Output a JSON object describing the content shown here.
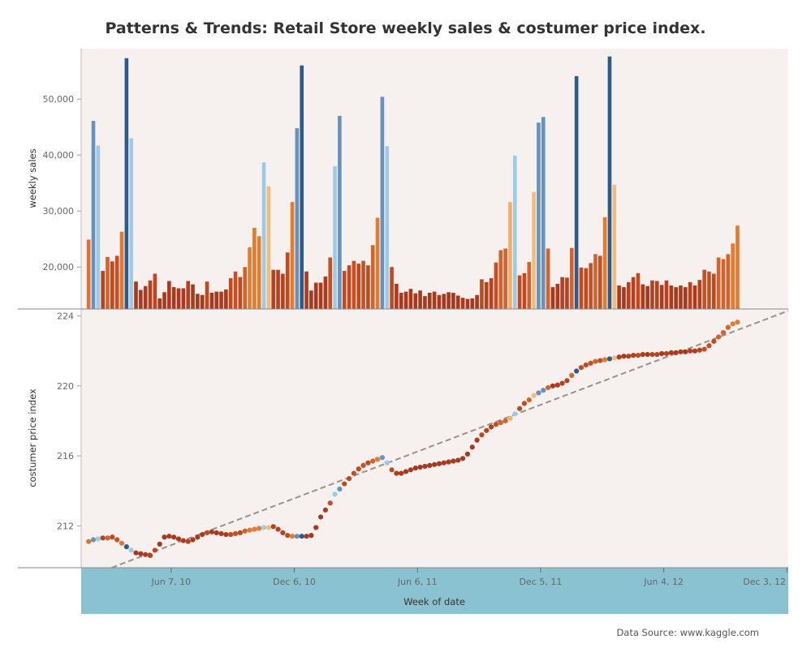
{
  "title": "Patterns & Trends: Retail Store weekly sales & costumer price index.",
  "source": "Data Source: www.kaggle.com",
  "colors": {
    "panel_bg": "#f6f1ee",
    "xaxis_band": "#8ac2d2",
    "trend_line": "#9c9089",
    "palette_orange": [
      "#a9381c",
      "#c04a1e",
      "#d4622c",
      "#e57b2d",
      "#f0bd7f"
    ],
    "palette_blue": [
      "#9dcbe3",
      "#6592be",
      "#2f5b88",
      "#b6c3cb"
    ]
  },
  "chart_data": [
    {
      "type": "bar",
      "ylabel": "weekly sales",
      "y_ticks": [
        "20,000",
        "30,000",
        "40,000",
        "50,000"
      ],
      "y_tick_values": [
        20000,
        30000,
        40000,
        50000
      ],
      "ylim": [
        12500,
        59000
      ],
      "x_start": "2010-02-05",
      "x_interval_days": 7,
      "values": [
        24900,
        46100,
        41700,
        19300,
        21800,
        21000,
        22000,
        26300,
        57300,
        43000,
        17400,
        15900,
        16600,
        17600,
        18800,
        14400,
        15500,
        17500,
        16400,
        16200,
        16200,
        17500,
        16900,
        15200,
        15000,
        17400,
        15400,
        15600,
        15600,
        16000,
        18000,
        19200,
        18200,
        20000,
        23500,
        27000,
        25500,
        38700,
        34400,
        19500,
        19500,
        18800,
        22600,
        31600,
        44800,
        56000,
        19200,
        15800,
        17200,
        17200,
        18300,
        21700,
        38000,
        47000,
        19300,
        20300,
        21100,
        20600,
        21100,
        20300,
        23900,
        28800,
        50400,
        41600,
        20000,
        17000,
        15400,
        15600,
        16100,
        15300,
        15800,
        14800,
        15400,
        15600,
        15000,
        15200,
        15500,
        15400,
        14900,
        14500,
        14300,
        14400,
        15000,
        17800,
        17300,
        18000,
        20800,
        23000,
        23300,
        31600,
        39900,
        18500,
        18900,
        20900,
        33400,
        45800,
        46800,
        23300,
        16400,
        17000,
        18200,
        18100,
        23400,
        54100,
        19900,
        19800,
        20700,
        22300,
        22000,
        28900,
        57600,
        34700,
        16700,
        16400,
        17300,
        18200,
        18900,
        16900,
        16600,
        17600,
        17500,
        16800,
        17600,
        16700,
        16400,
        16700,
        16400,
        17300,
        16700,
        17700,
        19500,
        19200,
        18800,
        21700,
        21400,
        22300,
        24200,
        27400
      ],
      "bar_colors": [
        "#e07130",
        "#6592be",
        "#9dcbe3",
        "#b74420",
        "#d4622c",
        "#c04a1e",
        "#c94f22",
        "#e17730",
        "#2f5b88",
        "#9dcbe3",
        "#a9381c",
        "#a9381c",
        "#b0391c",
        "#b5411f",
        "#c0461f",
        "#a9381c",
        "#a9381c",
        "#b0391c",
        "#a9381c",
        "#a9381c",
        "#b0391c",
        "#b5411f",
        "#b0391c",
        "#a9381c",
        "#a9381c",
        "#c04a1e",
        "#a9381c",
        "#a9381c",
        "#b0391c",
        "#b0391c",
        "#c04a1e",
        "#c94f22",
        "#c04a1e",
        "#d4622c",
        "#e57b2d",
        "#e57b2d",
        "#e57b2d",
        "#9dcbe3",
        "#f0bd7f",
        "#b5411f",
        "#b5411f",
        "#b5411f",
        "#c04a1e",
        "#e57b2d",
        "#6592be",
        "#2f5b88",
        "#b0391c",
        "#a9381c",
        "#a9381c",
        "#a9381c",
        "#b0391c",
        "#c94f22",
        "#9dcbe3",
        "#6592be",
        "#c04a1e",
        "#c04a1e",
        "#c94f22",
        "#c04a1e",
        "#c94f22",
        "#c04a1e",
        "#d4622c",
        "#e57b2d",
        "#6592be",
        "#9dcbe3",
        "#c04a1e",
        "#b0391c",
        "#a9381c",
        "#a9381c",
        "#a9381c",
        "#a9381c",
        "#a9381c",
        "#a9381c",
        "#a9381c",
        "#a9381c",
        "#a9381c",
        "#a9381c",
        "#a9381c",
        "#a9381c",
        "#a9381c",
        "#a9381c",
        "#a9381c",
        "#a9381c",
        "#a9381c",
        "#c04a1e",
        "#b5411f",
        "#b5411f",
        "#c94f22",
        "#d4622c",
        "#d4622c",
        "#f0b06a",
        "#9dcbe3",
        "#c04a1e",
        "#c04a1e",
        "#d4622c",
        "#f0bd7f",
        "#6592be",
        "#6592be",
        "#d4622c",
        "#a9381c",
        "#b0391c",
        "#b5411f",
        "#b5411f",
        "#d4622c",
        "#2f5b88",
        "#c04a1e",
        "#c04a1e",
        "#c94f22",
        "#d4622c",
        "#c94f22",
        "#e57b2d",
        "#2f5b88",
        "#f0bd7f",
        "#b0391c",
        "#a9381c",
        "#b5411f",
        "#b5411f",
        "#c04a1e",
        "#b0391c",
        "#a9381c",
        "#b5411f",
        "#b5411f",
        "#b0391c",
        "#b5411f",
        "#b0391c",
        "#a9381c",
        "#b0391c",
        "#a9381c",
        "#b5411f",
        "#b0391c",
        "#b5411f",
        "#c94f22",
        "#c94f22",
        "#c04a1e",
        "#d4622c",
        "#d4622c",
        "#d4622c",
        "#e57b2d",
        "#e57b2d"
      ]
    },
    {
      "type": "scatter",
      "ylabel": "costumer price index",
      "xlabel": "Week of date",
      "y_ticks": [
        "212",
        "216",
        "220",
        "224"
      ],
      "y_tick_values": [
        212,
        216,
        220,
        224
      ],
      "ylim": [
        209.6,
        224.4
      ],
      "x_ticks": [
        "Jun 7, 10",
        "Dec 6, 10",
        "Jun 6, 11",
        "Dec 5, 11",
        "Jun 4, 12",
        "Dec 3, 12"
      ],
      "x_tick_dates": [
        "2010-06-07",
        "2010-12-06",
        "2011-06-06",
        "2011-12-05",
        "2012-06-04",
        "2012-12-03"
      ],
      "x_range": [
        "2010-01-25",
        "2012-12-05"
      ],
      "x_start": "2010-02-05",
      "x_interval_days": 7,
      "trend": {
        "x": [
          "2010-03-11",
          "2012-12-05"
        ],
        "y": [
          209.6,
          224.3
        ]
      },
      "values": [
        211.1,
        211.2,
        211.25,
        211.3,
        211.3,
        211.35,
        211.2,
        211.0,
        210.8,
        210.6,
        210.45,
        210.4,
        210.35,
        210.3,
        210.6,
        210.95,
        211.35,
        211.4,
        211.35,
        211.25,
        211.15,
        211.1,
        211.2,
        211.35,
        211.5,
        211.6,
        211.65,
        211.6,
        211.55,
        211.5,
        211.5,
        211.55,
        211.6,
        211.7,
        211.75,
        211.8,
        211.85,
        211.9,
        211.9,
        211.95,
        211.8,
        211.6,
        211.45,
        211.4,
        211.4,
        211.4,
        211.4,
        211.45,
        211.9,
        212.5,
        212.9,
        213.3,
        213.8,
        214.1,
        214.4,
        214.7,
        215.0,
        215.25,
        215.45,
        215.6,
        215.7,
        215.8,
        215.9,
        215.6,
        215.2,
        215.0,
        215.0,
        215.1,
        215.2,
        215.3,
        215.35,
        215.4,
        215.45,
        215.5,
        215.55,
        215.6,
        215.65,
        215.7,
        215.75,
        215.85,
        216.1,
        216.5,
        216.9,
        217.2,
        217.45,
        217.65,
        217.8,
        217.9,
        218.0,
        218.15,
        218.4,
        218.7,
        219.0,
        219.2,
        219.45,
        219.6,
        219.75,
        219.9,
        220.0,
        220.05,
        220.15,
        220.3,
        220.6,
        220.85,
        221.05,
        221.2,
        221.3,
        221.4,
        221.45,
        221.5,
        221.55,
        221.6,
        221.65,
        221.7,
        221.7,
        221.75,
        221.75,
        221.8,
        221.8,
        221.8,
        221.8,
        221.85,
        221.85,
        221.9,
        221.9,
        221.95,
        221.95,
        222.0,
        222.0,
        222.05,
        222.1,
        222.3,
        222.55,
        222.8,
        223.05,
        223.35,
        223.55,
        223.65
      ],
      "point_colors": [
        "#e07130",
        "#6592be",
        "#9dcbe3",
        "#b74420",
        "#d4622c",
        "#c04a1e",
        "#c94f22",
        "#e17730",
        "#2f5b88",
        "#9dcbe3",
        "#a9381c",
        "#a9381c",
        "#b0391c",
        "#b5411f",
        "#c0461f",
        "#a9381c",
        "#a9381c",
        "#b0391c",
        "#a9381c",
        "#a9381c",
        "#b0391c",
        "#b5411f",
        "#b0391c",
        "#a9381c",
        "#a9381c",
        "#c04a1e",
        "#a9381c",
        "#a9381c",
        "#b0391c",
        "#b0391c",
        "#c04a1e",
        "#c94f22",
        "#c04a1e",
        "#d4622c",
        "#e57b2d",
        "#e57b2d",
        "#e57b2d",
        "#9dcbe3",
        "#f0bd7f",
        "#b5411f",
        "#b5411f",
        "#b5411f",
        "#c04a1e",
        "#e57b2d",
        "#6592be",
        "#2f5b88",
        "#b0391c",
        "#a9381c",
        "#a9381c",
        "#a9381c",
        "#b0391c",
        "#c94f22",
        "#9dcbe3",
        "#6592be",
        "#c04a1e",
        "#c04a1e",
        "#c94f22",
        "#c04a1e",
        "#c94f22",
        "#c04a1e",
        "#d4622c",
        "#e57b2d",
        "#6592be",
        "#9dcbe3",
        "#c04a1e",
        "#b0391c",
        "#a9381c",
        "#a9381c",
        "#a9381c",
        "#a9381c",
        "#a9381c",
        "#a9381c",
        "#a9381c",
        "#a9381c",
        "#a9381c",
        "#a9381c",
        "#a9381c",
        "#a9381c",
        "#a9381c",
        "#a9381c",
        "#a9381c",
        "#a9381c",
        "#a9381c",
        "#c04a1e",
        "#b5411f",
        "#b5411f",
        "#c94f22",
        "#d4622c",
        "#d4622c",
        "#f0b06a",
        "#9dcbe3",
        "#c04a1e",
        "#c04a1e",
        "#d4622c",
        "#f0bd7f",
        "#6592be",
        "#6592be",
        "#d4622c",
        "#a9381c",
        "#b0391c",
        "#b5411f",
        "#b5411f",
        "#d4622c",
        "#2f5b88",
        "#c04a1e",
        "#c04a1e",
        "#c94f22",
        "#d4622c",
        "#c94f22",
        "#e57b2d",
        "#2f5b88",
        "#f0bd7f",
        "#b0391c",
        "#a9381c",
        "#b5411f",
        "#b5411f",
        "#c04a1e",
        "#b0391c",
        "#a9381c",
        "#b5411f",
        "#b5411f",
        "#b0391c",
        "#b5411f",
        "#b0391c",
        "#a9381c",
        "#b0391c",
        "#a9381c",
        "#b5411f",
        "#b0391c",
        "#b5411f",
        "#c94f22",
        "#c94f22",
        "#c04a1e",
        "#d4622c",
        "#d4622c",
        "#d4622c",
        "#e57b2d",
        "#e57b2d"
      ]
    }
  ]
}
